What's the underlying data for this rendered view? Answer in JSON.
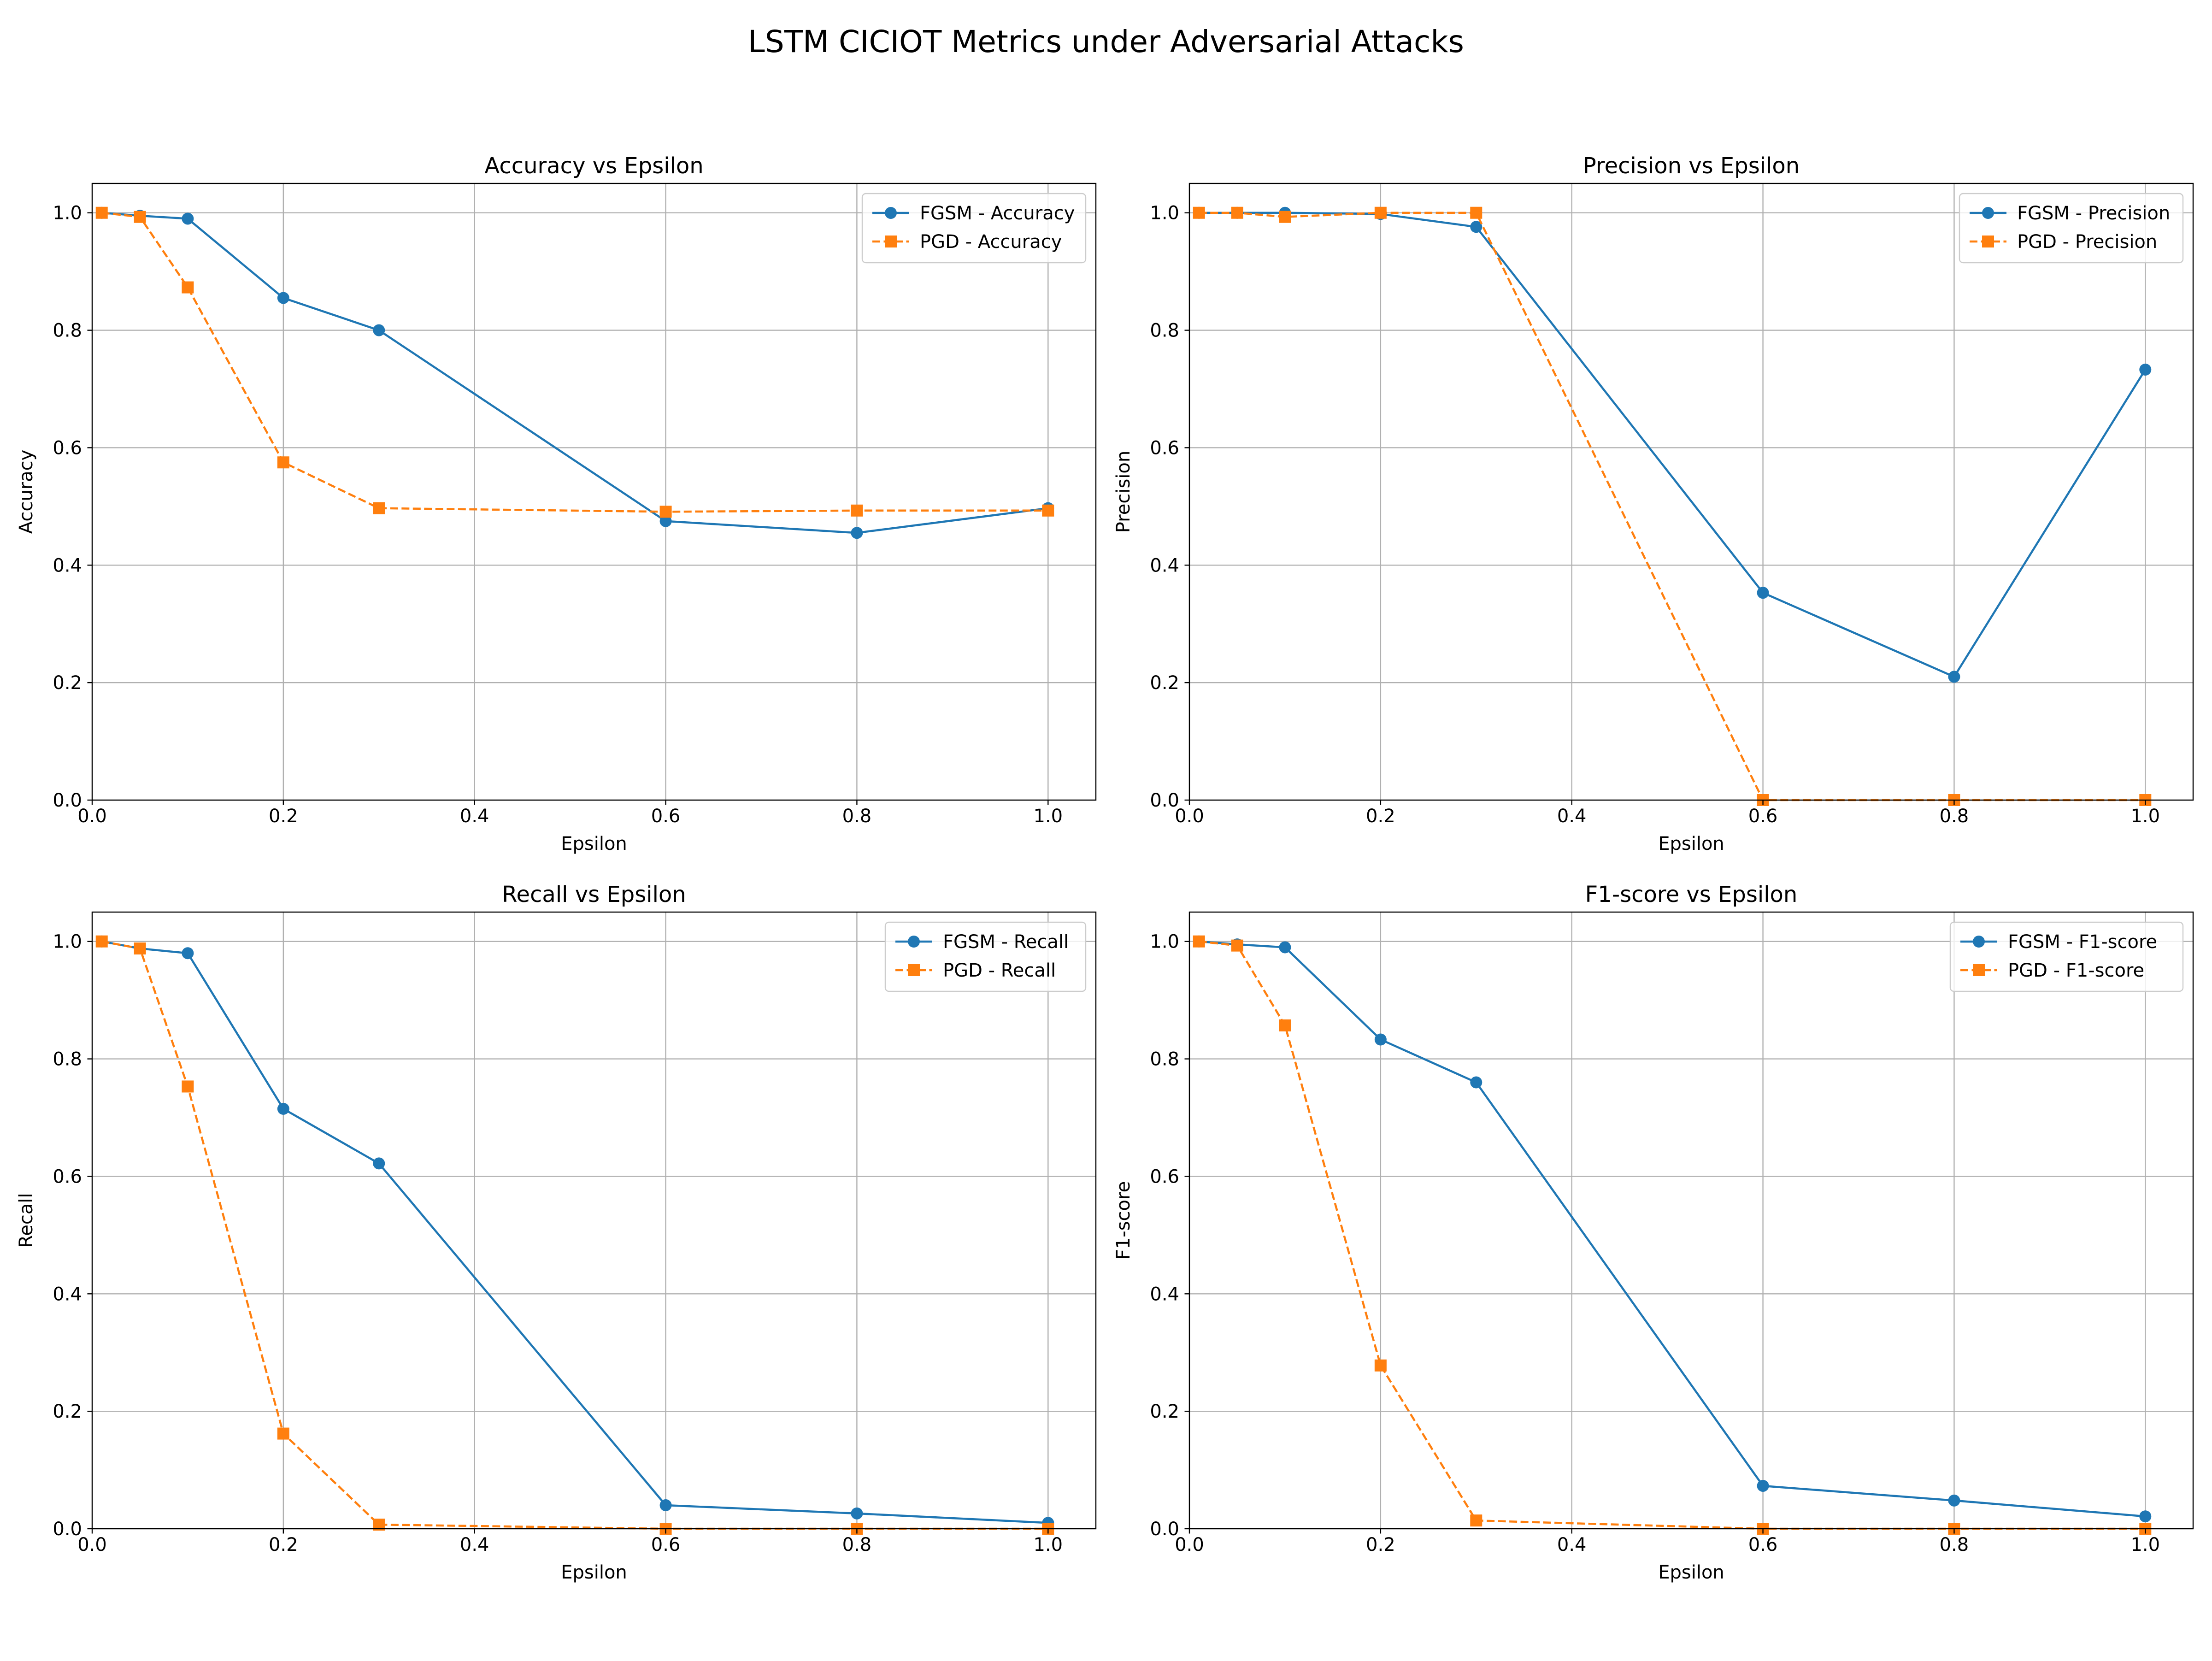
{
  "figure_title": "LSTM CICIOT Metrics under Adversarial Attacks",
  "colors": {
    "fgsm": "#1f77b4",
    "pgd": "#ff7f0e",
    "grid": "#b0b0b0",
    "axis": "#000000"
  },
  "chart_data": [
    {
      "type": "line",
      "title": "Accuracy vs Epsilon",
      "xlabel": "Epsilon",
      "ylabel": "Accuracy",
      "xlim": [
        0.0,
        1.05
      ],
      "ylim": [
        0.0,
        1.05
      ],
      "xticks": [
        0.0,
        0.2,
        0.4,
        0.6,
        0.8,
        1.0
      ],
      "xtick_labels": [
        "0.0",
        "0.2",
        "0.4",
        "0.6",
        "0.8",
        "1.0"
      ],
      "yticks": [
        0.0,
        0.2,
        0.4,
        0.6,
        0.8,
        1.0
      ],
      "ytick_labels": [
        "0.0",
        "0.2",
        "0.4",
        "0.6",
        "0.8",
        "1.0"
      ],
      "grid": true,
      "legend": "upper right",
      "x": [
        0.01,
        0.05,
        0.1,
        0.2,
        0.3,
        0.6,
        0.8,
        1.0
      ],
      "series": [
        {
          "name": "FGSM - Accuracy",
          "marker": "circle",
          "linestyle": "solid",
          "color": "#1f77b4",
          "values": [
            1.0,
            0.995,
            0.99,
            0.855,
            0.8,
            0.475,
            0.455,
            0.497
          ]
        },
        {
          "name": "PGD - Accuracy",
          "marker": "square",
          "linestyle": "dashed",
          "color": "#ff7f0e",
          "values": [
            1.0,
            0.993,
            0.873,
            0.575,
            0.497,
            0.491,
            0.493,
            0.493
          ]
        }
      ]
    },
    {
      "type": "line",
      "title": "Precision vs Epsilon",
      "xlabel": "Epsilon",
      "ylabel": "Precision",
      "xlim": [
        0.0,
        1.05
      ],
      "ylim": [
        0.0,
        1.05
      ],
      "xticks": [
        0.0,
        0.2,
        0.4,
        0.6,
        0.8,
        1.0
      ],
      "xtick_labels": [
        "0.0",
        "0.2",
        "0.4",
        "0.6",
        "0.8",
        "1.0"
      ],
      "yticks": [
        0.0,
        0.2,
        0.4,
        0.6,
        0.8,
        1.0
      ],
      "ytick_labels": [
        "0.0",
        "0.2",
        "0.4",
        "0.6",
        "0.8",
        "1.0"
      ],
      "grid": true,
      "legend": "upper right",
      "x": [
        0.01,
        0.05,
        0.1,
        0.2,
        0.3,
        0.6,
        0.8,
        1.0
      ],
      "series": [
        {
          "name": "FGSM - Precision",
          "marker": "circle",
          "linestyle": "solid",
          "color": "#1f77b4",
          "values": [
            1.0,
            1.0,
            1.0,
            0.998,
            0.976,
            0.353,
            0.21,
            0.733
          ]
        },
        {
          "name": "PGD - Precision",
          "marker": "square",
          "linestyle": "dashed",
          "color": "#ff7f0e",
          "values": [
            1.0,
            1.0,
            0.993,
            1.0,
            1.0,
            0.0,
            0.0,
            0.0
          ]
        }
      ]
    },
    {
      "type": "line",
      "title": "Recall vs Epsilon",
      "xlabel": "Epsilon",
      "ylabel": "Recall",
      "xlim": [
        0.0,
        1.05
      ],
      "ylim": [
        0.0,
        1.05
      ],
      "xticks": [
        0.0,
        0.2,
        0.4,
        0.6,
        0.8,
        1.0
      ],
      "xtick_labels": [
        "0.0",
        "0.2",
        "0.4",
        "0.6",
        "0.8",
        "1.0"
      ],
      "yticks": [
        0.0,
        0.2,
        0.4,
        0.6,
        0.8,
        1.0
      ],
      "ytick_labels": [
        "0.0",
        "0.2",
        "0.4",
        "0.6",
        "0.8",
        "1.0"
      ],
      "grid": true,
      "legend": "upper right",
      "x": [
        0.01,
        0.05,
        0.1,
        0.2,
        0.3,
        0.6,
        0.8,
        1.0
      ],
      "series": [
        {
          "name": "FGSM - Recall",
          "marker": "circle",
          "linestyle": "solid",
          "color": "#1f77b4",
          "values": [
            1.0,
            0.988,
            0.98,
            0.715,
            0.622,
            0.04,
            0.026,
            0.01
          ]
        },
        {
          "name": "PGD - Recall",
          "marker": "square",
          "linestyle": "dashed",
          "color": "#ff7f0e",
          "values": [
            1.0,
            0.988,
            0.753,
            0.162,
            0.007,
            0.0,
            0.0,
            0.0
          ]
        }
      ]
    },
    {
      "type": "line",
      "title": "F1-score vs Epsilon",
      "xlabel": "Epsilon",
      "ylabel": "F1-score",
      "xlim": [
        0.0,
        1.05
      ],
      "ylim": [
        0.0,
        1.05
      ],
      "xticks": [
        0.0,
        0.2,
        0.4,
        0.6,
        0.8,
        1.0
      ],
      "xtick_labels": [
        "0.0",
        "0.2",
        "0.4",
        "0.6",
        "0.8",
        "1.0"
      ],
      "yticks": [
        0.0,
        0.2,
        0.4,
        0.6,
        0.8,
        1.0
      ],
      "ytick_labels": [
        "0.0",
        "0.2",
        "0.4",
        "0.6",
        "0.8",
        "1.0"
      ],
      "grid": true,
      "legend": "upper right",
      "x": [
        0.01,
        0.05,
        0.1,
        0.2,
        0.3,
        0.6,
        0.8,
        1.0
      ],
      "series": [
        {
          "name": "FGSM - F1-score",
          "marker": "circle",
          "linestyle": "solid",
          "color": "#1f77b4",
          "values": [
            1.0,
            0.995,
            0.99,
            0.833,
            0.76,
            0.073,
            0.048,
            0.021
          ]
        },
        {
          "name": "PGD - F1-score",
          "marker": "square",
          "linestyle": "dashed",
          "color": "#ff7f0e",
          "values": [
            1.0,
            0.993,
            0.857,
            0.278,
            0.014,
            0.0,
            0.0,
            0.0
          ]
        }
      ]
    }
  ]
}
